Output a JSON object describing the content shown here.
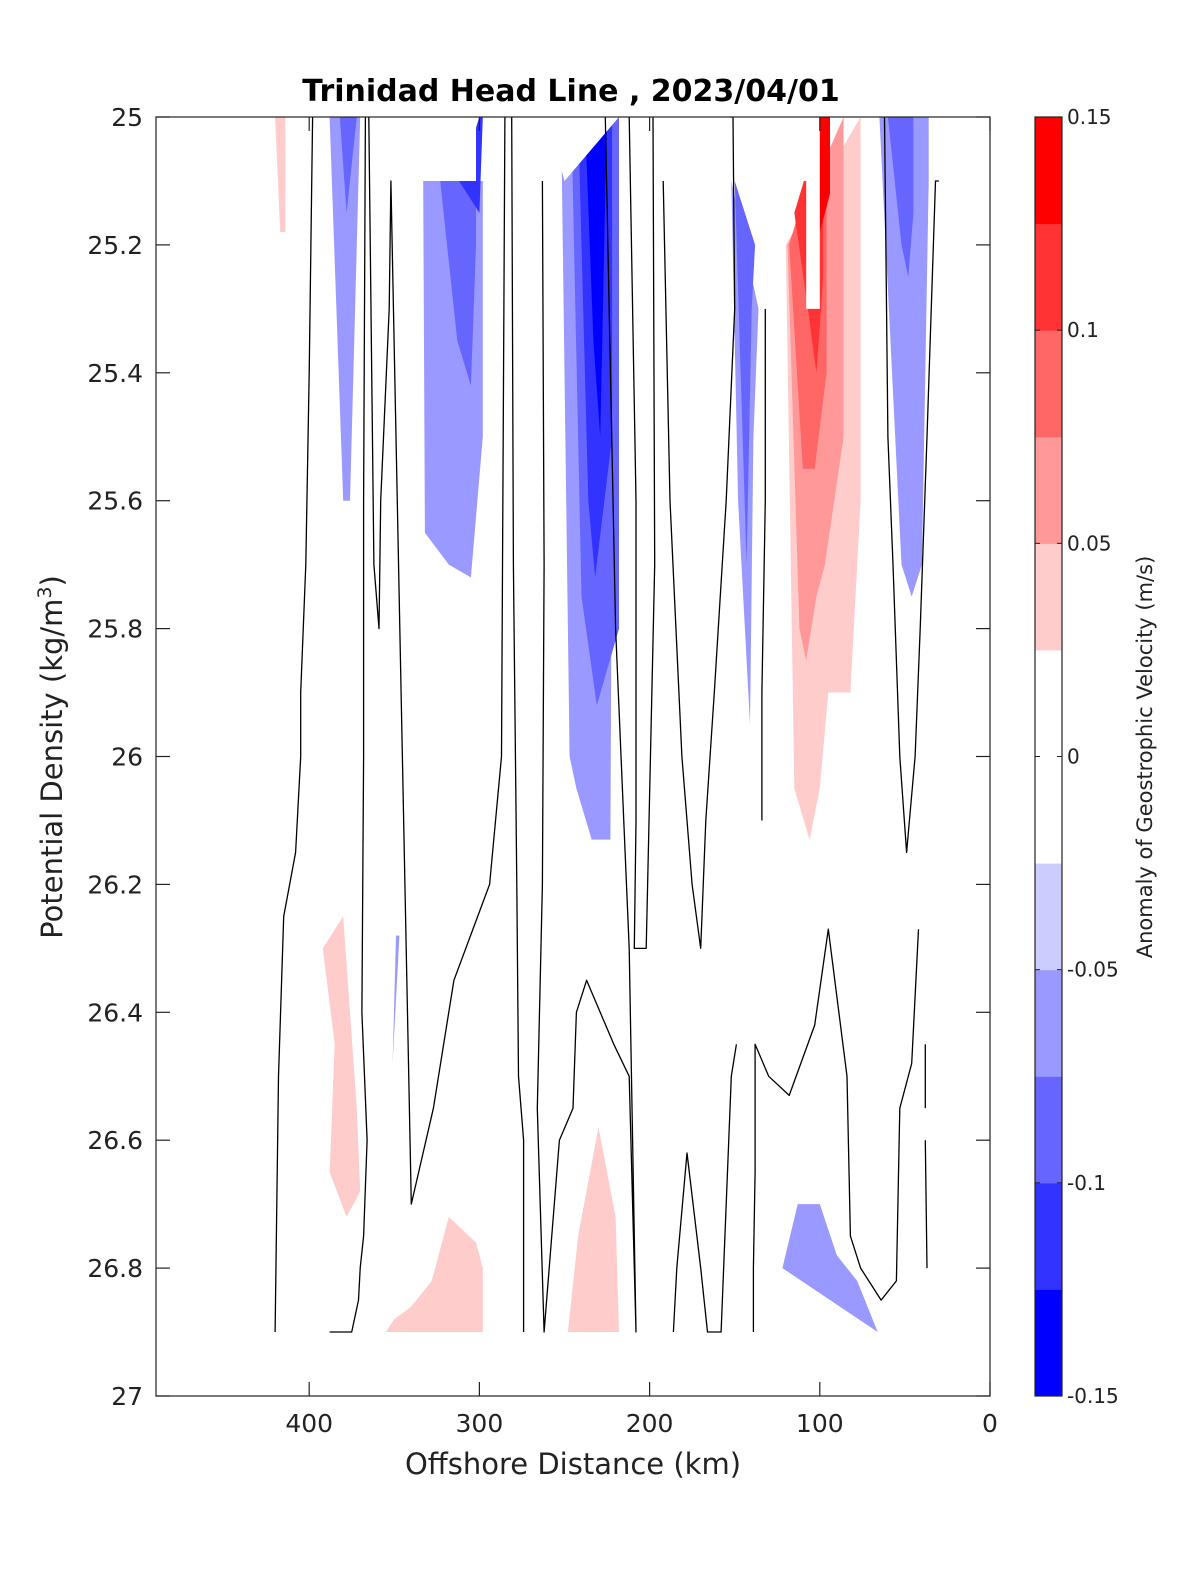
{
  "chart_data": {
    "type": "heatmap",
    "title": "Trinidad Head Line , 2023/04/01",
    "xlabel": "Offshore Distance (km)",
    "ylabel_base": "Potential Density (kg/m",
    "ylabel_sup": "3",
    "ylabel_end": ")",
    "colorbar_label": "Anomaly of Geostrophic Velocity (m/s)",
    "xlim": [
      490,
      0
    ],
    "ylim": [
      25,
      27
    ],
    "x_reversed": true,
    "y_reversed": true,
    "x_ticks": [
      400,
      300,
      200,
      100,
      0
    ],
    "x_tick_labels": [
      "400",
      "300",
      "200",
      "100",
      "0"
    ],
    "y_ticks": [
      25,
      25.2,
      25.4,
      25.6,
      25.8,
      26,
      26.2,
      26.4,
      26.6,
      26.8,
      27
    ],
    "y_tick_labels": [
      "25",
      "25.2",
      "25.4",
      "25.6",
      "25.8",
      "26",
      "26.2",
      "26.4",
      "26.6",
      "26.8",
      "27"
    ],
    "colorbar_range": [
      -0.15,
      0.15
    ],
    "colorbar_ticks": [
      0.15,
      0.1,
      0.05,
      0,
      -0.05,
      -0.1,
      -0.15
    ],
    "colorbar_tick_labels": [
      "0.15",
      "0.1",
      "0.05",
      "0",
      "-0.05",
      "-0.1",
      "-0.15"
    ],
    "levels": [
      {
        "lo": -0.15,
        "hi": -0.125,
        "color": "#0000ff"
      },
      {
        "lo": -0.125,
        "hi": -0.1,
        "color": "#3333ff"
      },
      {
        "lo": -0.1,
        "hi": -0.075,
        "color": "#6666ff"
      },
      {
        "lo": -0.075,
        "hi": -0.05,
        "color": "#9999ff"
      },
      {
        "lo": -0.05,
        "hi": -0.025,
        "color": "#ccccff"
      },
      {
        "lo": -0.025,
        "hi": 0.025,
        "color": "#ffffff"
      },
      {
        "lo": 0.025,
        "hi": 0.05,
        "color": "#ffcccc"
      },
      {
        "lo": 0.05,
        "hi": 0.075,
        "color": "#ff9999"
      },
      {
        "lo": 0.075,
        "hi": 0.1,
        "color": "#ff6666"
      },
      {
        "lo": 0.1,
        "hi": 0.125,
        "color": "#ff3333"
      },
      {
        "lo": 0.125,
        "hi": 0.15,
        "color": "#ff0000"
      }
    ],
    "regions": [
      {
        "level": -0.05,
        "x": [
          388,
          380,
          376,
          370
        ],
        "y": [
          25,
          25.6,
          25.6,
          25
        ]
      },
      {
        "level": -0.075,
        "x": [
          382,
          378,
          372
        ],
        "y": [
          25,
          25.15,
          25
        ]
      },
      {
        "level": -0.05,
        "x": [
          349,
          351,
          347
        ],
        "y": [
          26.28,
          26.48,
          26.28
        ]
      },
      {
        "level": -0.05,
        "x": [
          333,
          332,
          318,
          305,
          298,
          298
        ],
        "y": [
          25.1,
          25.65,
          25.7,
          25.72,
          25.5,
          25.1
        ]
      },
      {
        "level": -0.075,
        "x": [
          323,
          313,
          305,
          302,
          302
        ],
        "y": [
          25.1,
          25.35,
          25.42,
          25.2,
          25.1
        ]
      },
      {
        "level": -0.1,
        "x": [
          312,
          300,
          298,
          300
        ],
        "y": [
          25.1,
          25.15,
          25,
          25
        ]
      },
      {
        "level": -0.05,
        "x": [
          252,
          247,
          243,
          234,
          223,
          221
        ],
        "y": [
          25,
          26,
          26.05,
          26.13,
          26.13,
          25
        ]
      },
      {
        "level": -0.075,
        "x": [
          246,
          240,
          231,
          218,
          218
        ],
        "y": [
          25,
          25.75,
          25.92,
          25.8,
          25
        ]
      },
      {
        "level": -0.1,
        "x": [
          242,
          236,
          232,
          222,
          222
        ],
        "y": [
          25,
          25.6,
          25.72,
          25.5,
          25
        ]
      },
      {
        "level": -0.125,
        "x": [
          238,
          233,
          229,
          225
        ],
        "y": [
          25,
          25.35,
          25.5,
          25
        ]
      },
      {
        "level": -0.15,
        "x": [
          236,
          232,
          229,
          227
        ],
        "y": [
          25,
          25.17,
          25.18,
          25
        ]
      },
      {
        "level": -0.05,
        "x": [
          152,
          148,
          141,
          139,
          136
        ],
        "y": [
          25.1,
          25.6,
          25.95,
          25.5,
          25.3
        ]
      },
      {
        "level": -0.075,
        "x": [
          150,
          143,
          140,
          138
        ],
        "y": [
          25.1,
          25.7,
          25.3,
          25.2
        ]
      },
      {
        "level": -0.05,
        "x": [
          122,
          113,
          100,
          90,
          78,
          66,
          66
        ],
        "y": [
          26.8,
          26.7,
          26.7,
          26.78,
          26.82,
          26.9,
          26.9
        ]
      },
      {
        "level": -0.05,
        "x": [
          65,
          52,
          46,
          40,
          36,
          36
        ],
        "y": [
          25,
          25.7,
          25.75,
          25.7,
          25.1,
          25
        ]
      },
      {
        "level": -0.075,
        "x": [
          60,
          52,
          48,
          45,
          45
        ],
        "y": [
          25,
          25.2,
          25.25,
          25.15,
          25
        ]
      },
      {
        "level": 0.05,
        "x": [
          420,
          417,
          414,
          414
        ],
        "y": [
          25,
          25.18,
          25.18,
          25
        ]
      },
      {
        "level": 0.05,
        "x": [
          380,
          372,
          370,
          378,
          388,
          385,
          392
        ],
        "y": [
          26.25,
          26.55,
          26.68,
          26.72,
          26.65,
          26.45,
          26.3
        ]
      },
      {
        "level": 0.05,
        "x": [
          355,
          350,
          340,
          328,
          318,
          302,
          298,
          298
        ],
        "y": [
          26.9,
          26.88,
          26.86,
          26.82,
          26.72,
          26.76,
          26.8,
          26.9
        ]
      },
      {
        "level": 0.05,
        "x": [
          248,
          242,
          230,
          220,
          218,
          218
        ],
        "y": [
          26.9,
          26.75,
          26.58,
          26.72,
          26.9,
          26.9
        ]
      },
      {
        "level": 0.05,
        "x": [
          120,
          115,
          106,
          100,
          95,
          82,
          76,
          76
        ],
        "y": [
          25.2,
          26.05,
          26.13,
          26.05,
          25.9,
          25.9,
          25.6,
          25
        ]
      },
      {
        "level": 0.075,
        "x": [
          119,
          112,
          108,
          102,
          97,
          86,
          86
        ],
        "y": [
          25.2,
          25.8,
          25.85,
          25.75,
          25.7,
          25.5,
          25
        ]
      },
      {
        "level": 0.1,
        "x": [
          118,
          110,
          103,
          96,
          96
        ],
        "y": [
          25.2,
          25.55,
          25.55,
          25.4,
          25
        ]
      },
      {
        "level": 0.125,
        "x": [
          115,
          107,
          102,
          98,
          98
        ],
        "y": [
          25.15,
          25.3,
          25.4,
          25.25,
          25
        ]
      },
      {
        "level": 0.15,
        "x": [
          103,
          100,
          94,
          94
        ],
        "y": [
          25,
          25.18,
          25.12,
          25
        ]
      }
    ],
    "blank_regions": [
      {
        "x": [
          370,
          355,
          355,
          302,
          302,
          283,
          283,
          260,
          250,
          250,
          218,
          211,
          211,
          182,
          180,
          172,
          120,
          108,
          108,
          100,
          100,
          60,
          28,
          28
        ],
        "y": [
          25,
          25,
          25.1,
          25.1,
          25,
          25,
          25,
          25,
          25.1,
          25.1,
          25,
          25,
          25,
          25,
          25.1,
          25.1,
          25.1,
          25.1,
          25.3,
          25.3,
          25,
          25,
          25,
          25
        ]
      }
    ],
    "contours_zero": [
      {
        "x": [
          398,
          400,
          402,
          405,
          405,
          408,
          415,
          418,
          420
        ],
        "y": [
          25,
          25.4,
          25.7,
          25.9,
          26,
          26.15,
          26.25,
          26.5,
          26.9
        ]
      },
      {
        "x": [
          367,
          368,
          368,
          369,
          366,
          368,
          370,
          371,
          375,
          388
        ],
        "y": [
          25,
          25.6,
          26.0,
          26.4,
          26.6,
          26.75,
          26.8,
          26.85,
          26.9,
          26.9
        ]
      },
      {
        "x": [
          365,
          362,
          359,
          358,
          353,
          352,
          340,
          327,
          315,
          301,
          294,
          287,
          285
        ],
        "y": [
          25,
          25.7,
          25.8,
          25.6,
          25.3,
          25.1,
          26.7,
          26.55,
          26.35,
          26.25,
          26.2,
          26.0,
          25.0
        ]
      },
      {
        "x": [
          281,
          280,
          278,
          277,
          274,
          274
        ],
        "y": [
          25,
          25.7,
          26.2,
          26.5,
          26.6,
          26.9
        ]
      },
      {
        "x": [
          263,
          262,
          263,
          266,
          262,
          253,
          245,
          243,
          237,
          221,
          212,
          208,
          212,
          220,
          226
        ],
        "y": [
          25.1,
          25.7,
          26.2,
          26.55,
          26.9,
          26.6,
          26.55,
          26.4,
          26.35,
          26.45,
          26.5,
          26.9,
          26.3,
          25.8,
          25.0
        ]
      },
      {
        "x": [
          212,
          208,
          208,
          209,
          202,
          197,
          198
        ],
        "y": [
          25,
          25.6,
          26.1,
          26.3,
          26.3,
          25.7,
          25.0
        ]
      },
      {
        "x": [
          192,
          188,
          181,
          175,
          170,
          167,
          162,
          155,
          150,
          151,
          153
        ],
        "y": [
          25.1,
          25.6,
          26.0,
          26.2,
          26.3,
          26.1,
          25.9,
          25.6,
          25.3,
          25.0,
          25.0
        ]
      },
      {
        "x": [
          186,
          184,
          178,
          170,
          166,
          162,
          158,
          152,
          149
        ],
        "y": [
          26.9,
          26.8,
          26.62,
          26.8,
          26.9,
          26.9,
          26.9,
          26.5,
          26.45
        ]
      },
      {
        "x": [
          139,
          139,
          138,
          138,
          130,
          118,
          103,
          95,
          84,
          82,
          76,
          64,
          55,
          53,
          46,
          42
        ],
        "y": [
          26.9,
          26.8,
          26.65,
          26.45,
          26.5,
          26.53,
          26.42,
          26.27,
          26.5,
          26.75,
          26.8,
          26.85,
          26.82,
          26.55,
          26.48,
          26.27
        ]
      },
      {
        "x": [
          132,
          132,
          134,
          134
        ],
        "y": [
          25.3,
          25.6,
          25.9,
          26.1
        ]
      },
      {
        "x": [
          62,
          60,
          57,
          53,
          49,
          44,
          41,
          37,
          32,
          30
        ],
        "y": [
          25,
          25.5,
          25.7,
          26.0,
          26.15,
          26.0,
          25.8,
          25.5,
          25.1,
          25.1
        ]
      },
      {
        "x": [
          38,
          38
        ],
        "y": [
          26.45,
          26.55
        ]
      },
      {
        "x": [
          38,
          37
        ],
        "y": [
          26.6,
          26.8
        ]
      }
    ]
  }
}
